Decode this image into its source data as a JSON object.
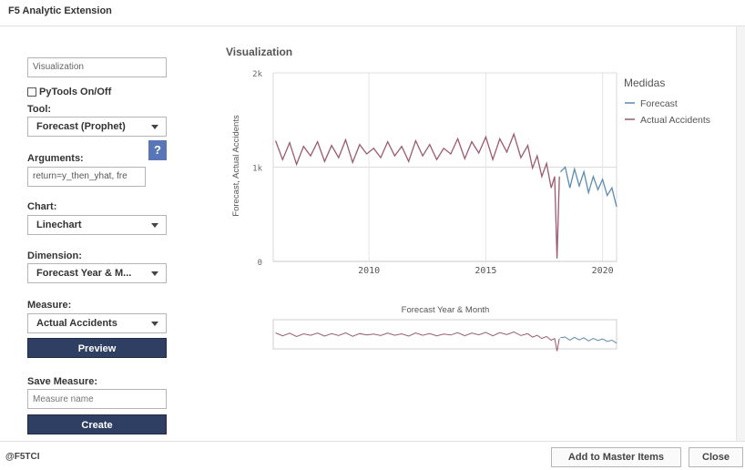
{
  "window": {
    "title": "F5 Analytic Extension"
  },
  "form": {
    "viz_name_value": "Visualization",
    "pytools_label": "PyTools On/Off",
    "tool_label": "Tool:",
    "tool_value": "Forecast (Prophet)",
    "arguments_label": "Arguments:",
    "arguments_value": "return=y_then_yhat, fre",
    "help_label": "?",
    "chart_label": "Chart:",
    "chart_value": "Linechart",
    "dimension_label": "Dimension:",
    "dimension_value": "Forecast Year & M...",
    "measure_label": "Measure:",
    "measure_value": "Actual Accidents",
    "preview_label": "Preview",
    "save_measure_label": "Save Measure:",
    "measure_name_placeholder": "Measure name",
    "create_label": "Create"
  },
  "viz": {
    "title": "Visualization"
  },
  "footer": {
    "brand": "@F5TCI",
    "add_master_label": "Add to Master Items",
    "close_label": "Close"
  },
  "chart_data": {
    "type": "line",
    "ylabel": "Forecast, Actual Accidents",
    "xlabel": "Forecast Year & Month",
    "y_ticks": [
      "0",
      "1k",
      "2k"
    ],
    "x_ticks": [
      "2010",
      "2015",
      "2020"
    ],
    "ylim": [
      0,
      2000
    ],
    "xlim": [
      2005.9,
      2020.6
    ],
    "legend_title": "Medidas",
    "legend_position": "right",
    "grid": true,
    "colors": {
      "forecast": "#5b8bb0",
      "actual": "#9b5a73"
    },
    "series": [
      {
        "name": "Forecast",
        "x": [
          2018.2,
          2018.4,
          2018.6,
          2018.8,
          2019.0,
          2019.2,
          2019.4,
          2019.6,
          2019.8,
          2020.0,
          2020.2,
          2020.4,
          2020.6
        ],
        "values": [
          950,
          1000,
          780,
          980,
          800,
          950,
          730,
          900,
          760,
          870,
          700,
          780,
          580
        ]
      },
      {
        "name": "Actual Accidents",
        "x": [
          2006.0,
          2006.3,
          2006.6,
          2006.9,
          2007.2,
          2007.5,
          2007.8,
          2008.1,
          2008.4,
          2008.7,
          2009.0,
          2009.3,
          2009.6,
          2009.9,
          2010.2,
          2010.5,
          2010.8,
          2011.1,
          2011.4,
          2011.7,
          2012.0,
          2012.3,
          2012.6,
          2012.9,
          2013.2,
          2013.5,
          2013.8,
          2014.1,
          2014.4,
          2014.7,
          2015.0,
          2015.3,
          2015.6,
          2015.9,
          2016.2,
          2016.5,
          2016.8,
          2017.0,
          2017.2,
          2017.4,
          2017.6,
          2017.8,
          2017.95,
          2018.05,
          2018.15
        ],
        "values": [
          1280,
          1080,
          1260,
          1030,
          1220,
          1120,
          1270,
          1060,
          1230,
          1100,
          1290,
          1050,
          1240,
          1140,
          1200,
          1100,
          1270,
          1120,
          1220,
          1060,
          1280,
          1120,
          1240,
          1080,
          1200,
          1140,
          1300,
          1090,
          1270,
          1150,
          1320,
          1080,
          1300,
          1160,
          1350,
          1100,
          1230,
          990,
          1120,
          900,
          1040,
          780,
          900,
          30,
          900
        ]
      }
    ]
  }
}
